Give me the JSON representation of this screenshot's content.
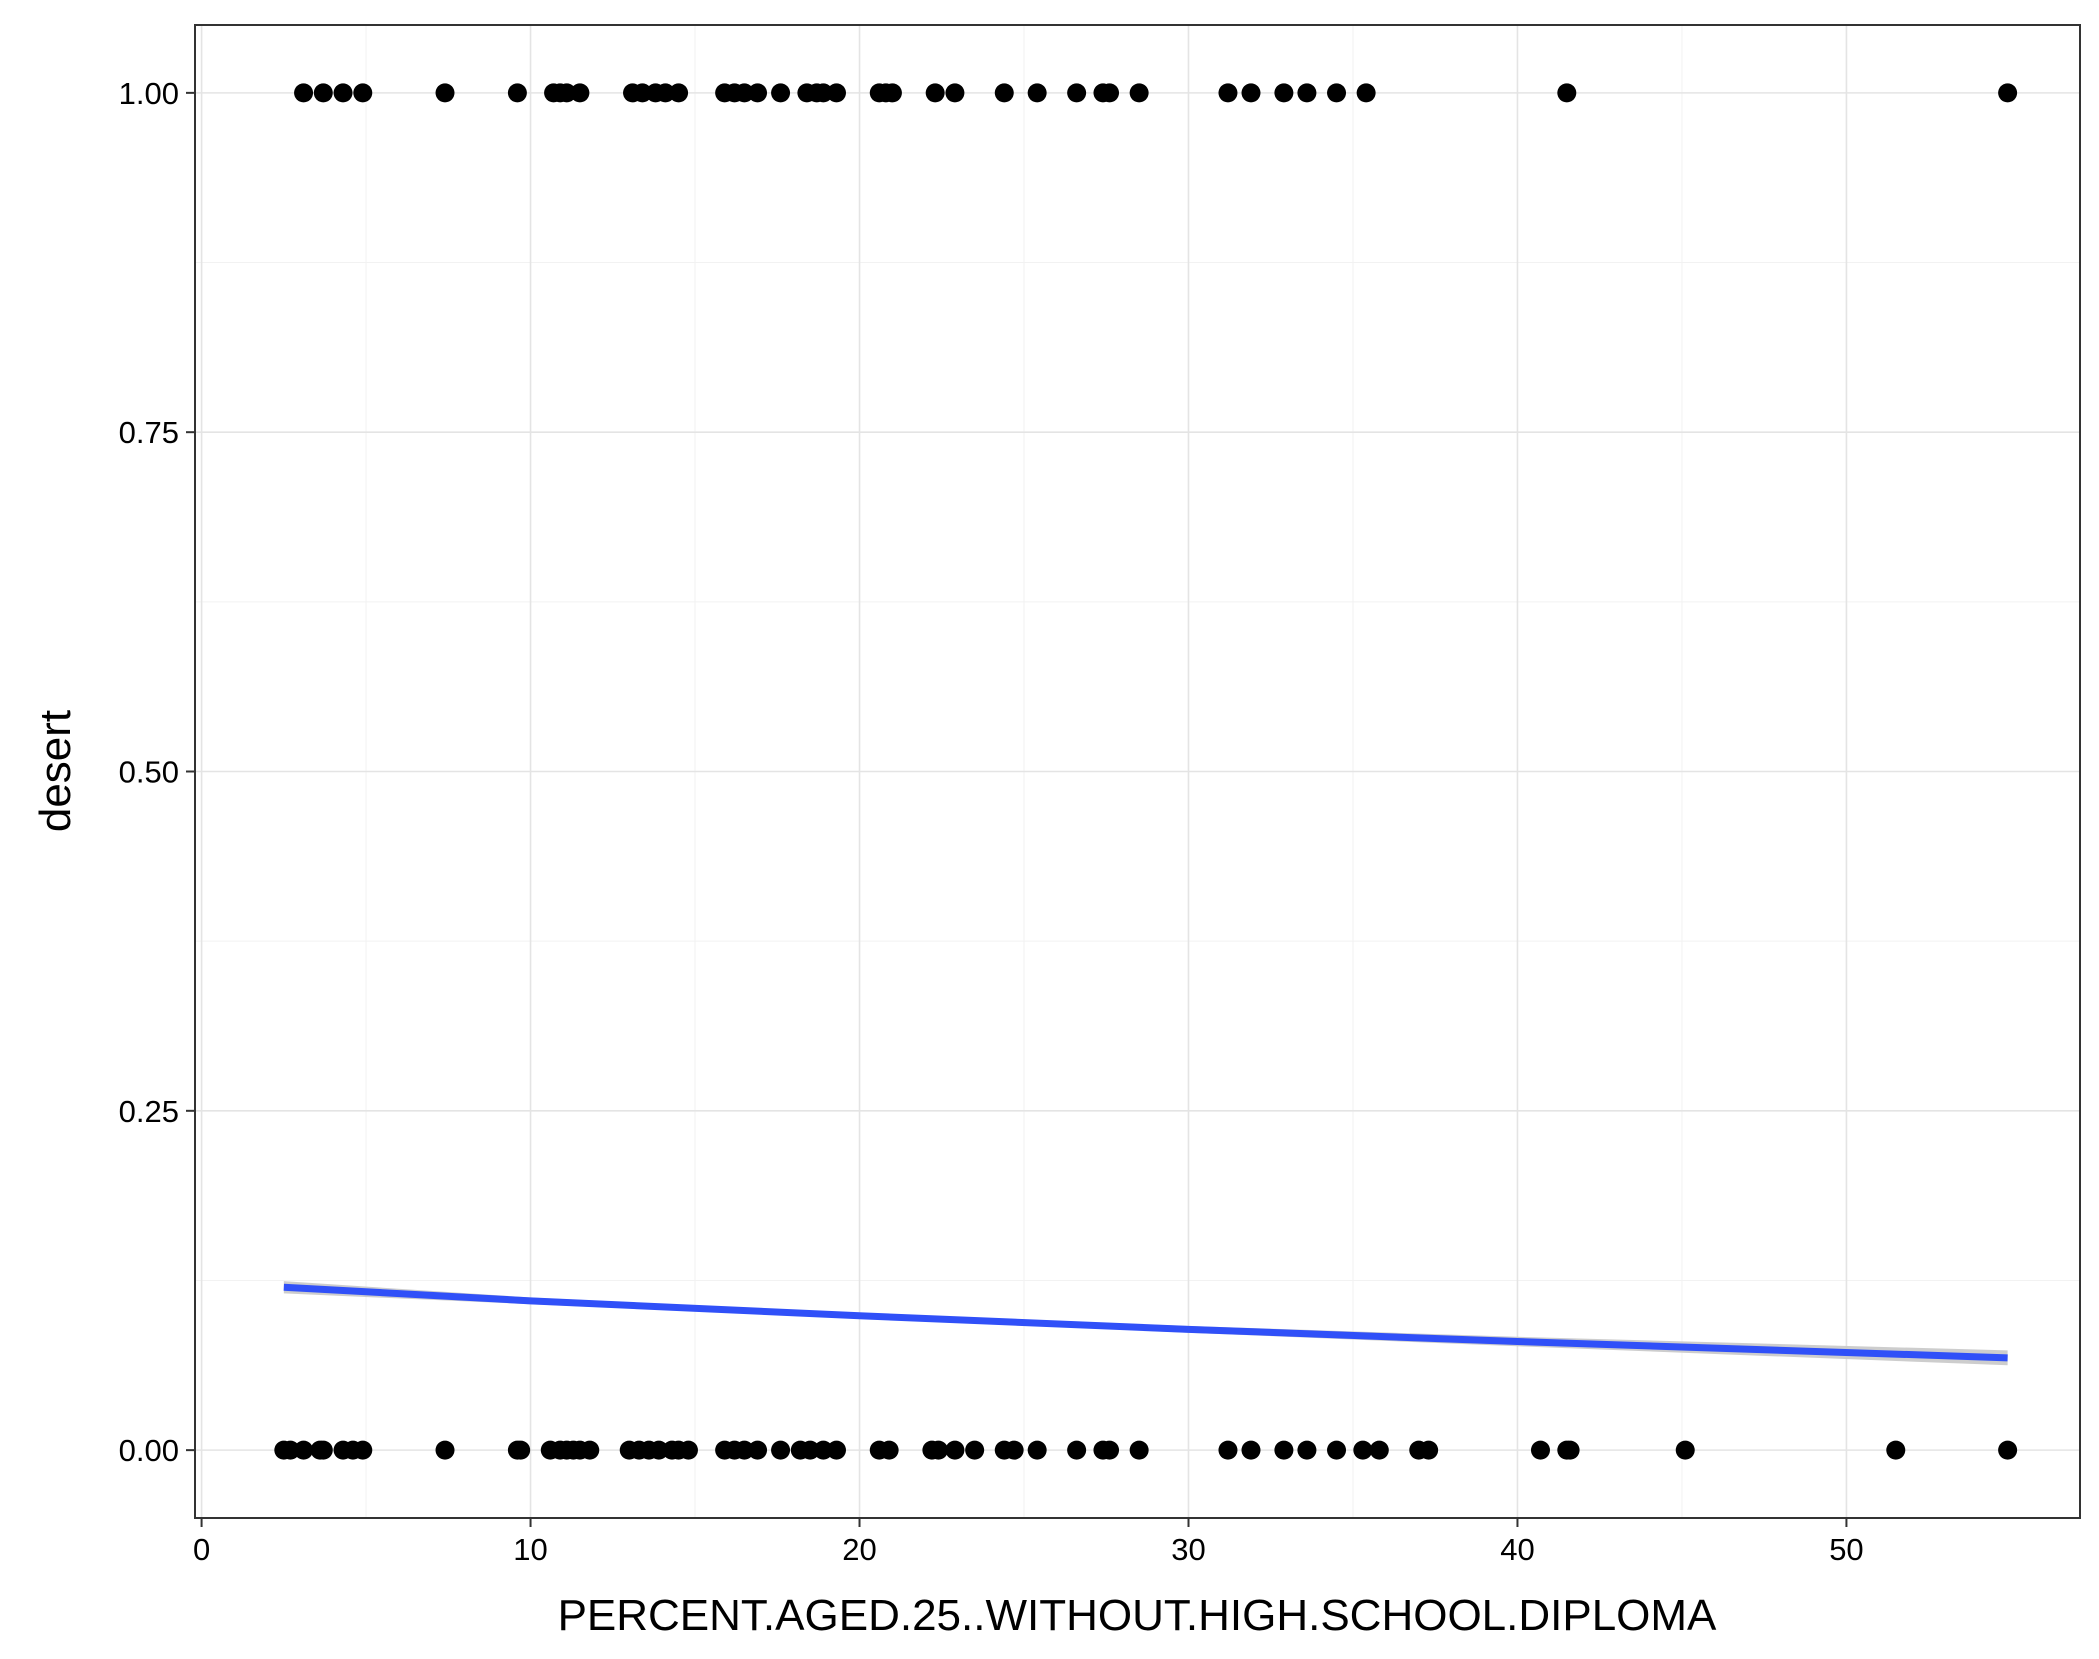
{
  "chart_data": {
    "type": "scatter",
    "title": "",
    "xlabel": "PERCENT.AGED.25..WITHOUT.HIGH.SCHOOL.DIPLOMA",
    "ylabel": "desert",
    "xlim": [
      -0.2,
      57.1
    ],
    "ylim": [
      -0.05,
      1.05
    ],
    "x_ticks": [
      0,
      10,
      20,
      30,
      40,
      50
    ],
    "x_tick_labels": [
      "0",
      "10",
      "20",
      "30",
      "40",
      "50"
    ],
    "y_ticks": [
      0,
      0.25,
      0.5,
      0.75,
      1.0
    ],
    "y_tick_labels": [
      "0.00",
      "0.25",
      "0.50",
      "0.75",
      "1.00"
    ],
    "grid": true,
    "legend": "none",
    "point_color": "#000000",
    "fit_color": "#3050f8",
    "band_color": "#c8c8c8",
    "points": {
      "y1_x": [
        3.1,
        3.7,
        4.3,
        4.9,
        7.4,
        9.6,
        10.7,
        10.9,
        11.1,
        11.5,
        13.1,
        13.4,
        13.8,
        14.1,
        14.5,
        15.9,
        16.2,
        16.5,
        16.9,
        17.6,
        18.4,
        18.7,
        18.9,
        19.3,
        20.6,
        20.8,
        21.0,
        22.3,
        22.9,
        24.4,
        25.4,
        26.6,
        27.4,
        27.6,
        28.5,
        31.2,
        31.9,
        32.9,
        33.6,
        34.5,
        35.4,
        41.5,
        54.9
      ],
      "y0_x": [
        2.5,
        2.7,
        3.1,
        3.6,
        3.7,
        4.3,
        4.6,
        4.9,
        7.4,
        9.6,
        9.7,
        10.6,
        10.9,
        11.1,
        11.3,
        11.5,
        11.8,
        13.0,
        13.3,
        13.6,
        13.9,
        14.3,
        14.5,
        14.8,
        15.9,
        16.2,
        16.5,
        16.9,
        17.6,
        18.2,
        18.5,
        18.9,
        19.3,
        20.6,
        20.9,
        22.2,
        22.4,
        22.9,
        23.5,
        24.4,
        24.7,
        25.4,
        26.6,
        27.4,
        27.6,
        28.5,
        31.2,
        31.9,
        32.9,
        33.6,
        34.5,
        35.3,
        35.8,
        37.0,
        37.3,
        40.7,
        41.5,
        41.6,
        45.1,
        51.5,
        54.9
      ]
    },
    "fit": {
      "x": [
        2.5,
        10,
        20,
        30,
        40,
        54.9
      ],
      "y": [
        0.12,
        0.11,
        0.099,
        0.089,
        0.08,
        0.068
      ]
    }
  }
}
